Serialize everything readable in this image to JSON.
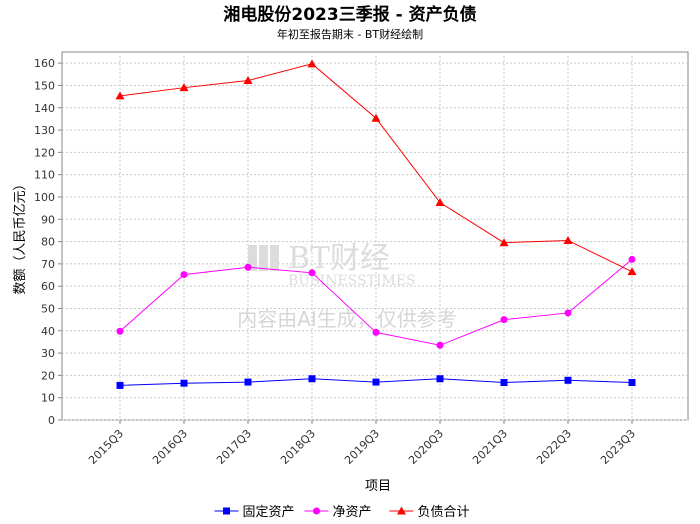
{
  "chart_data": {
    "type": "line",
    "title": "湘电股份2023三季报 - 资产负债",
    "subtitle": "年初至报告期末 - BT财经绘制",
    "xlabel": "项目",
    "ylabel": "数额（人民币亿元）",
    "ylim": [
      0,
      165
    ],
    "yticks": [
      0,
      10,
      20,
      30,
      40,
      50,
      60,
      70,
      80,
      90,
      100,
      110,
      120,
      130,
      140,
      150,
      160
    ],
    "categories": [
      "2015Q3",
      "2016Q3",
      "2017Q3",
      "2018Q3",
      "2019Q3",
      "2020Q3",
      "2021Q3",
      "2022Q3",
      "2023Q3"
    ],
    "series": [
      {
        "name": "固定资产",
        "color": "#0000ff",
        "marker": "square",
        "values": [
          15.5,
          16.5,
          17.0,
          18.5,
          17.0,
          18.5,
          16.8,
          17.8,
          16.8
        ]
      },
      {
        "name": "净资产",
        "color": "#ff00ff",
        "marker": "circle",
        "values": [
          39.8,
          65.2,
          68.5,
          66.0,
          39.3,
          33.5,
          45.0,
          48.0,
          72.0
        ]
      },
      {
        "name": "负债合计",
        "color": "#ff0000",
        "marker": "triangle",
        "values": [
          145.3,
          149.0,
          152.2,
          159.7,
          135.3,
          97.5,
          79.5,
          80.5,
          66.5
        ]
      }
    ],
    "grid": true,
    "legend": "bottom"
  },
  "watermark": {
    "brand": "BT财经",
    "brand_en": "BUSINESSTIMES",
    "notice": "内容由AI生成，仅供参考"
  }
}
